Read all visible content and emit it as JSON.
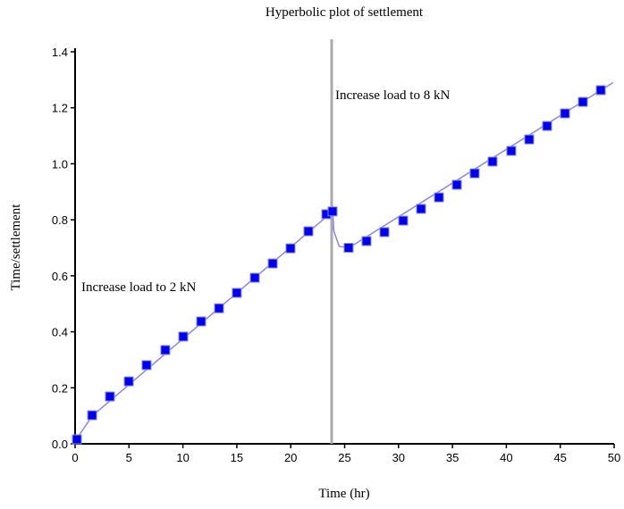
{
  "chart_data": {
    "type": "scatter",
    "title": "Hyperbolic plot of settlement",
    "x_label": "Time (hr)",
    "y_label": "Time/settlement",
    "annotations": [
      "Increase load to 2 kN",
      "Increase load to 8 kN"
    ],
    "vertical_line_x": 23.8,
    "xlim": [
      0,
      50
    ],
    "ylim": [
      0,
      1.4
    ],
    "xticks": [
      0,
      5,
      10,
      15,
      20,
      25,
      30,
      35,
      40,
      45,
      50
    ],
    "yticks": [
      {
        "value": 0,
        "label": "0.0"
      },
      0.2,
      0.4,
      0.6,
      0.8,
      {
        "value": 1,
        "label": "1.0"
      },
      1.2,
      1.4
    ],
    "series": [
      {
        "color": "#0000ee",
        "x": [
          0.17,
          1.58,
          3.23,
          4.98,
          6.63,
          8.37,
          10.03,
          11.69,
          13.35,
          15.0,
          16.67,
          18.33,
          19.98,
          21.64,
          23.3,
          23.88,
          25.37,
          27.03,
          28.69,
          30.43,
          32.09,
          33.75,
          35.41,
          37.06,
          38.72,
          40.46,
          42.12,
          43.78,
          45.44,
          47.1,
          48.76
        ],
        "values": [
          0.016,
          0.102,
          0.169,
          0.223,
          0.281,
          0.335,
          0.383,
          0.437,
          0.484,
          0.539,
          0.593,
          0.644,
          0.698,
          0.759,
          0.82,
          0.83,
          0.7,
          0.724,
          0.756,
          0.797,
          0.839,
          0.88,
          0.925,
          0.966,
          1.008,
          1.046,
          1.087,
          1.135,
          1.18,
          1.221,
          1.263
        ]
      },
      {
        "color": "#8888ee",
        "x": [
          0,
          1.6,
          23.9,
          24.0,
          24.5,
          25.4,
          49.9
        ],
        "values": [
          0.01,
          0.1,
          0.83,
          0.76,
          0.705,
          0.7,
          1.29
        ]
      }
    ]
  }
}
